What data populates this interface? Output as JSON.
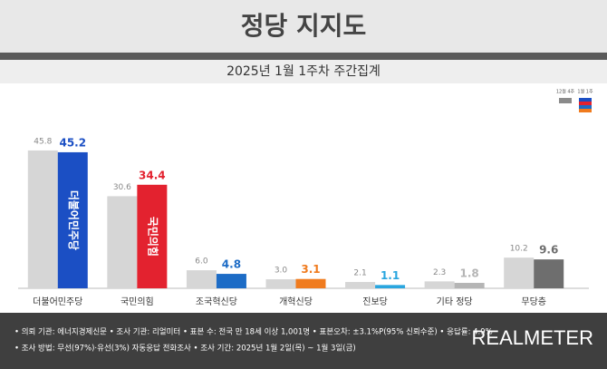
{
  "chart_data": {
    "type": "bar",
    "title": "정당 지지도",
    "subtitle": "2025년 1월 1주차 주간집계",
    "categories": [
      "더불어민주당",
      "국민의힘",
      "조국혁신당",
      "개혁신당",
      "진보당",
      "기타 정당",
      "무당층"
    ],
    "series": [
      {
        "name": "12월 4주",
        "color": "#d6d6d6",
        "values": [
          45.8,
          30.6,
          6.0,
          3.0,
          2.1,
          2.3,
          10.2
        ],
        "value_labels": [
          "45.8",
          "30.6",
          "6.0",
          "3.0",
          "2.1",
          "2.3",
          "10.2"
        ]
      },
      {
        "name": "1월 1주",
        "colors": [
          "#1b4fc4",
          "#e3222f",
          "#1d6cc6",
          "#f07b1e",
          "#2aa6df",
          "#b5b5b5",
          "#6e6e6e"
        ],
        "values": [
          45.2,
          34.4,
          4.8,
          3.1,
          1.1,
          1.8,
          9.6
        ],
        "logos": [
          "더불어민주당",
          "국민의힘",
          null,
          null,
          null,
          null,
          null
        ]
      }
    ],
    "ylim": [
      0,
      50
    ],
    "legend": "top-right"
  },
  "footer": {
    "notes": [
      "• 의뢰 기관: 에너지경제신문  • 조사 기관: 리얼미터  • 표본 수: 전국 만 18세 이상 1,001명  • 표본오차: ±3.1%P(95% 신뢰수준)  • 응답률: 4.9%",
      "• 조사 방법: 무선(97%)·유선(3%) 자동응답 전화조사  • 조사 기간: 2025년 1월 2일(목) ~ 1월 3일(금)"
    ],
    "brand": "REALMETER"
  }
}
